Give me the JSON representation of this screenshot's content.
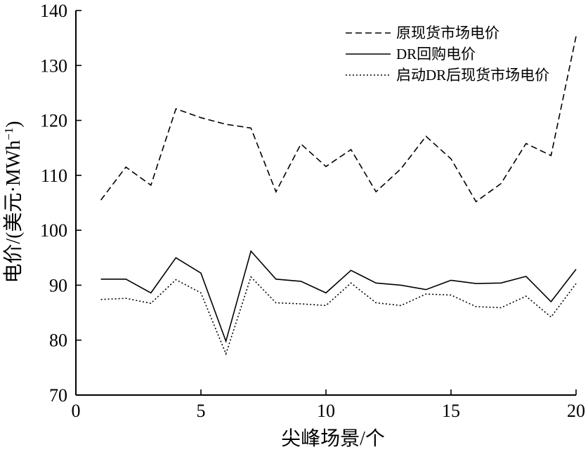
{
  "chart_data": {
    "type": "line",
    "xlabel": "尖峰场景/个",
    "ylabel": "电价/(美元·MWh",
    "ylabel_sup": "−1",
    "ylabel_close": ")",
    "xlim": [
      0,
      20
    ],
    "ylim": [
      70,
      140
    ],
    "xticks": [
      0,
      5,
      10,
      15,
      20
    ],
    "yticks": [
      70,
      80,
      90,
      100,
      110,
      120,
      130,
      140
    ],
    "grid": false,
    "legend_position": "top-right",
    "x": [
      1,
      2,
      3,
      4,
      5,
      6,
      7,
      8,
      9,
      10,
      11,
      12,
      13,
      14,
      15,
      16,
      17,
      18,
      19,
      20
    ],
    "series": [
      {
        "name": "原现货市场电价",
        "style": "dashed",
        "values": [
          105.5,
          111.5,
          108.2,
          122.1,
          120.5,
          119.3,
          118.6,
          107.0,
          115.7,
          111.6,
          114.7,
          107.0,
          111.2,
          117.1,
          113.0,
          105.2,
          108.5,
          115.8,
          113.6,
          135.3
        ]
      },
      {
        "name": "DR回购电价",
        "style": "solid",
        "values": [
          91.1,
          91.1,
          88.6,
          95.0,
          92.2,
          79.8,
          96.2,
          91.1,
          90.7,
          88.6,
          92.7,
          90.4,
          90.0,
          89.2,
          90.9,
          90.3,
          90.4,
          91.6,
          87.0,
          92.9
        ]
      },
      {
        "name": "启动DR后现货市场电价",
        "style": "dotted",
        "values": [
          87.4,
          87.6,
          86.7,
          91.0,
          88.6,
          77.5,
          91.5,
          86.8,
          86.6,
          86.3,
          90.4,
          86.8,
          86.3,
          88.4,
          88.2,
          86.1,
          85.9,
          88.0,
          84.2,
          90.3
        ]
      }
    ]
  }
}
